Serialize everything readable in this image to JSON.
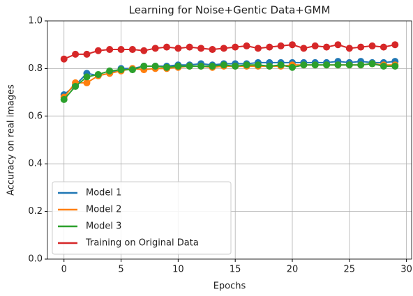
{
  "chart_data": {
    "type": "line",
    "title": "Learning for Noise+Gentic Data+GMM",
    "xlabel": "Epochs",
    "ylabel": "Accuracy on real images",
    "x": [
      0,
      1,
      2,
      3,
      4,
      5,
      6,
      7,
      8,
      9,
      10,
      11,
      12,
      13,
      14,
      15,
      16,
      17,
      18,
      19,
      20,
      21,
      22,
      23,
      24,
      25,
      26,
      27,
      28,
      29
    ],
    "series": [
      {
        "name": "Model 1",
        "color": "#1f77b4",
        "values": [
          0.69,
          0.73,
          0.78,
          0.77,
          0.78,
          0.8,
          0.8,
          0.81,
          0.81,
          0.81,
          0.815,
          0.815,
          0.82,
          0.815,
          0.82,
          0.82,
          0.82,
          0.825,
          0.825,
          0.825,
          0.825,
          0.825,
          0.825,
          0.825,
          0.83,
          0.825,
          0.83,
          0.825,
          0.825,
          0.83
        ]
      },
      {
        "name": "Model 2",
        "color": "#ff7f0e",
        "values": [
          0.68,
          0.74,
          0.74,
          0.77,
          0.78,
          0.79,
          0.8,
          0.795,
          0.8,
          0.8,
          0.805,
          0.81,
          0.81,
          0.805,
          0.81,
          0.81,
          0.81,
          0.81,
          0.81,
          0.81,
          0.815,
          0.815,
          0.815,
          0.815,
          0.815,
          0.815,
          0.815,
          0.82,
          0.815,
          0.815
        ]
      },
      {
        "name": "Model 3",
        "color": "#2ca02c",
        "values": [
          0.67,
          0.725,
          0.765,
          0.775,
          0.79,
          0.795,
          0.795,
          0.81,
          0.81,
          0.805,
          0.81,
          0.81,
          0.81,
          0.81,
          0.815,
          0.81,
          0.815,
          0.815,
          0.81,
          0.815,
          0.805,
          0.815,
          0.815,
          0.815,
          0.815,
          0.815,
          0.815,
          0.82,
          0.81,
          0.81
        ]
      },
      {
        "name": "Training on Original Data",
        "color": "#d62728",
        "values": [
          0.84,
          0.86,
          0.86,
          0.875,
          0.88,
          0.88,
          0.88,
          0.875,
          0.885,
          0.89,
          0.885,
          0.89,
          0.885,
          0.88,
          0.885,
          0.89,
          0.895,
          0.885,
          0.89,
          0.895,
          0.9,
          0.885,
          0.895,
          0.89,
          0.9,
          0.885,
          0.89,
          0.895,
          0.89,
          0.9
        ]
      }
    ],
    "xlim": [
      -1.45,
      30.45
    ],
    "xticks": [
      0,
      5,
      10,
      15,
      20,
      25,
      30
    ],
    "ylim": [
      0,
      1
    ],
    "yticks": [
      {
        "value": 0,
        "label": "0.0"
      },
      0.2,
      0.4,
      0.6,
      0.8,
      {
        "value": 1,
        "label": "1.0"
      }
    ],
    "grid": true,
    "legend": "lower left"
  }
}
